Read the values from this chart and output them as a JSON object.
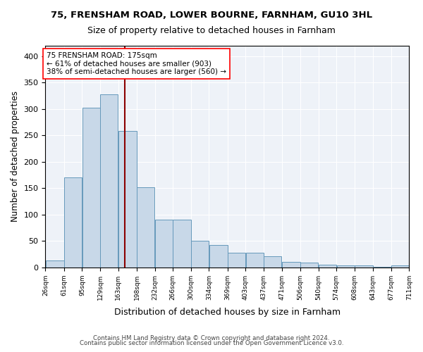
{
  "title1": "75, FRENSHAM ROAD, LOWER BOURNE, FARNHAM, GU10 3HL",
  "title2": "Size of property relative to detached houses in Farnham",
  "xlabel": "Distribution of detached houses by size in Farnham",
  "ylabel": "Number of detached properties",
  "bar_color": "#c8d8e8",
  "bar_edge_color": "#6699bb",
  "property_line_color": "#8b0000",
  "property_size": 175,
  "annotation_text": "75 FRENSHAM ROAD: 175sqm\n← 61% of detached houses are smaller (903)\n38% of semi-detached houses are larger (560) →",
  "footnote1": "Contains HM Land Registry data © Crown copyright and database right 2024.",
  "footnote2": "Contains public sector information licensed under the Open Government Licence v3.0.",
  "bins": [
    26,
    61,
    95,
    129,
    163,
    198,
    232,
    266,
    300,
    334,
    369,
    403,
    437,
    471,
    506,
    540,
    574,
    608,
    643,
    677,
    711
  ],
  "counts": [
    13,
    170,
    302,
    328,
    258,
    152,
    91,
    91,
    50,
    43,
    28,
    28,
    21,
    10,
    9,
    5,
    4,
    4,
    1,
    4
  ],
  "ylim": [
    0,
    420
  ],
  "yticks": [
    0,
    50,
    100,
    150,
    200,
    250,
    300,
    350,
    400
  ]
}
